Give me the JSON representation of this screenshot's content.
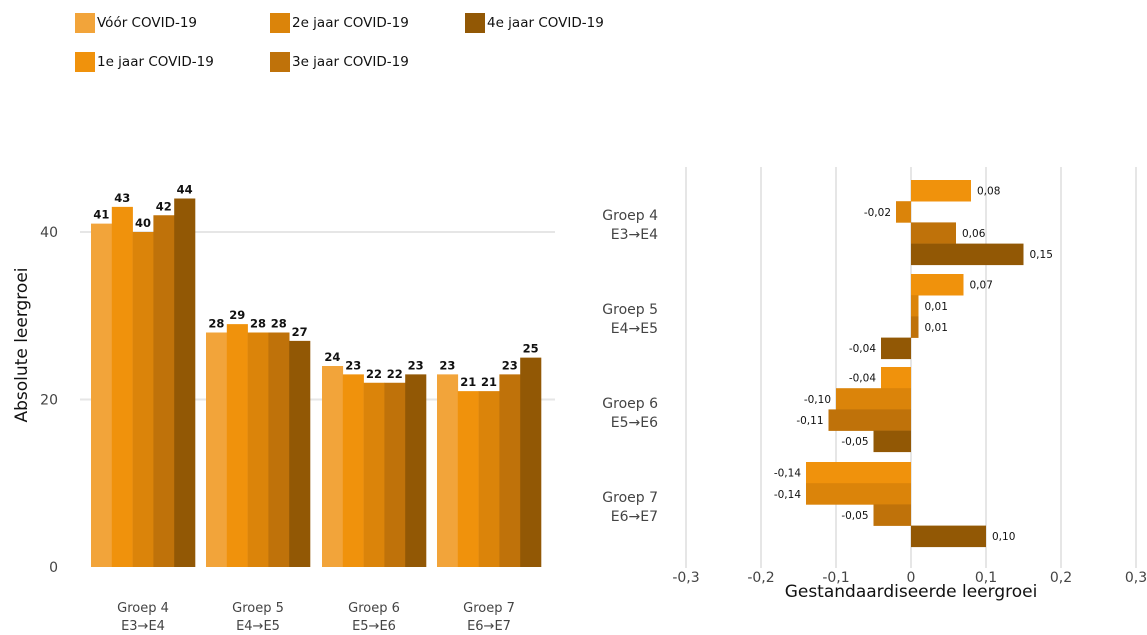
{
  "legend": [
    {
      "label": "Vóór COVID-19",
      "color": "#F2A43A"
    },
    {
      "label": "1e jaar COVID-19",
      "color": "#F0920C"
    },
    {
      "label": "2e jaar COVID-19",
      "color": "#DB840A"
    },
    {
      "label": "3e jaar COVID-19",
      "color": "#BF720A"
    },
    {
      "label": "4e jaar COVID-19",
      "color": "#925805"
    }
  ],
  "chart_data": [
    {
      "type": "bar",
      "orientation": "vertical",
      "ylabel": "Absolute leergroei",
      "ylim": [
        0,
        48
      ],
      "yticks": [
        0,
        20,
        40
      ],
      "ytick_labels": [
        "0",
        "20",
        "40"
      ],
      "categories": [
        {
          "line1": "Groep 4",
          "line2": "E3→E4"
        },
        {
          "line1": "Groep 5",
          "line2": "E4→E5"
        },
        {
          "line1": "Groep 6",
          "line2": "E5→E6"
        },
        {
          "line1": "Groep 7",
          "line2": "E6→E7"
        }
      ],
      "series": [
        {
          "name": "Vóór COVID-19",
          "values": [
            41,
            28,
            24,
            23
          ]
        },
        {
          "name": "1e jaar COVID-19",
          "values": [
            43,
            29,
            23,
            21
          ]
        },
        {
          "name": "2e jaar COVID-19",
          "values": [
            40,
            28,
            22,
            21
          ]
        },
        {
          "name": "3e jaar COVID-19",
          "values": [
            42,
            28,
            22,
            23
          ]
        },
        {
          "name": "4e jaar COVID-19",
          "values": [
            44,
            27,
            23,
            25
          ]
        }
      ],
      "grid": true
    },
    {
      "type": "bar",
      "orientation": "horizontal",
      "xlabel": "Gestandaardiseerde leergroei",
      "xlim": [
        -0.3,
        0.3
      ],
      "xticks": [
        -0.3,
        -0.2,
        -0.1,
        0,
        0.1,
        0.2,
        0.3
      ],
      "xtick_labels": [
        "-0,3",
        "-0,2",
        "-0,1",
        "0",
        "0,1",
        "0,2",
        "0,3"
      ],
      "categories": [
        {
          "line1": "Groep 4",
          "line2": "E3→E4"
        },
        {
          "line1": "Groep 5",
          "line2": "E4→E5"
        },
        {
          "line1": "Groep 6",
          "line2": "E5→E6"
        },
        {
          "line1": "Groep 7",
          "line2": "E6→E7"
        }
      ],
      "series": [
        {
          "name": "1e jaar COVID-19",
          "values": [
            0.08,
            0.07,
            -0.04,
            -0.14
          ],
          "labels": [
            "0,08",
            "0,07",
            "-0,04",
            "-0,14"
          ]
        },
        {
          "name": "2e jaar COVID-19",
          "values": [
            -0.02,
            0.01,
            -0.1,
            -0.14
          ],
          "labels": [
            "-0,02",
            "0,01",
            "-0,10",
            "-0,14"
          ]
        },
        {
          "name": "3e jaar COVID-19",
          "values": [
            0.06,
            0.01,
            -0.11,
            -0.05
          ],
          "labels": [
            "0,06",
            "0,01",
            "-0,11",
            "-0,05"
          ]
        },
        {
          "name": "4e jaar COVID-19",
          "values": [
            0.15,
            -0.04,
            -0.05,
            0.1
          ],
          "labels": [
            "0,15",
            "-0,04",
            "-0,05",
            "0,10"
          ]
        }
      ],
      "grid": true
    }
  ]
}
